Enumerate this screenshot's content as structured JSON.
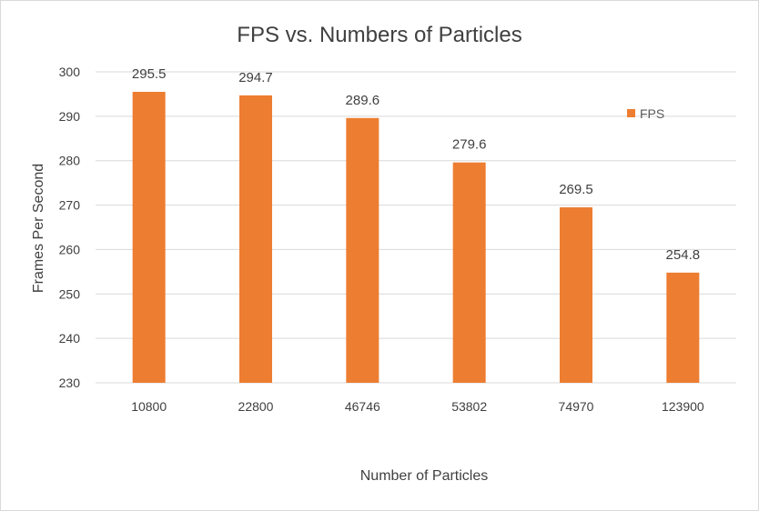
{
  "chart_data": {
    "type": "bar",
    "title": "FPS vs. Numbers of Particles",
    "xlabel": "Number of Particles",
    "ylabel": "Frames Per Second",
    "categories": [
      "10800",
      "22800",
      "46746",
      "53802",
      "74970",
      "123900"
    ],
    "series": [
      {
        "name": "FPS",
        "values": [
          295.5,
          294.7,
          289.6,
          279.6,
          269.5,
          254.8
        ],
        "color": "#ED7D31"
      }
    ],
    "ylim": [
      230,
      300
    ],
    "yticks": [
      230,
      240,
      250,
      260,
      270,
      280,
      290,
      300
    ],
    "grid": true,
    "legend_position": "top-right"
  }
}
